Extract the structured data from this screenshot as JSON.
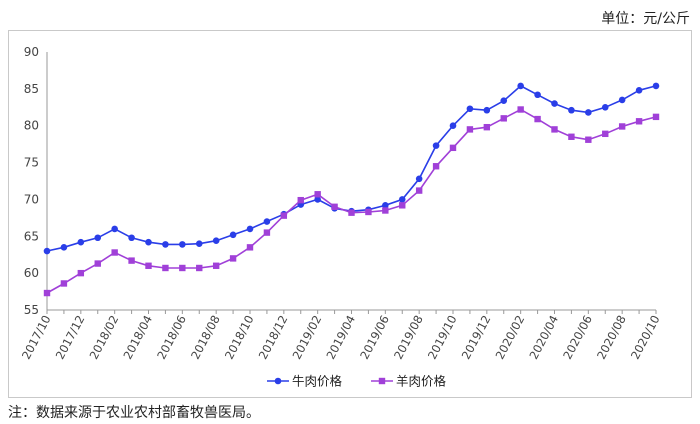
{
  "unit_label": "单位：元/公斤",
  "note": "注：数据来源于农业农村部畜牧兽医局。",
  "chart_data": {
    "type": "line",
    "title": "",
    "xlabel": "",
    "ylabel": "",
    "ylim": [
      55,
      90
    ],
    "yticks": [
      55,
      60,
      65,
      70,
      75,
      80,
      85,
      90
    ],
    "grid": false,
    "legend_position": "bottom-center",
    "x": [
      "2017/10",
      "2017/11",
      "2017/12",
      "2018/01",
      "2018/02",
      "2018/03",
      "2018/04",
      "2018/05",
      "2018/06",
      "2018/07",
      "2018/08",
      "2018/09",
      "2018/10",
      "2018/11",
      "2018/12",
      "2019/01",
      "2019/02",
      "2019/03",
      "2019/04",
      "2019/05",
      "2019/06",
      "2019/07",
      "2019/08",
      "2019/09",
      "2019/10",
      "2019/11",
      "2019/12",
      "2020/01",
      "2020/02",
      "2020/03",
      "2020/04",
      "2020/05",
      "2020/06",
      "2020/07",
      "2020/08",
      "2020/09",
      "2020/10"
    ],
    "xtick_labels": [
      "2017/10",
      "2017/12",
      "2018/02",
      "2018/04",
      "2018/06",
      "2018/08",
      "2018/10",
      "2018/12",
      "2019/02",
      "2019/04",
      "2019/06",
      "2019/08",
      "2019/10",
      "2019/12",
      "2020/02",
      "2020/04",
      "2020/06",
      "2020/08",
      "2020/10"
    ],
    "series": [
      {
        "name": "牛肉价格",
        "color": "#2a3ee8",
        "marker": "circle",
        "values": [
          63.0,
          63.5,
          64.2,
          64.8,
          66.0,
          64.8,
          64.2,
          63.9,
          63.9,
          64.0,
          64.4,
          65.2,
          66.0,
          67.0,
          68.0,
          69.3,
          70.0,
          68.8,
          68.4,
          68.6,
          69.2,
          70.0,
          72.8,
          77.3,
          80.0,
          82.3,
          82.1,
          83.4,
          85.4,
          84.2,
          83.0,
          82.1,
          81.8,
          82.5,
          83.5,
          84.8,
          85.4
        ]
      },
      {
        "name": "羊肉价格",
        "color": "#a040d8",
        "marker": "square",
        "values": [
          57.3,
          58.6,
          60.0,
          61.3,
          62.8,
          61.7,
          61.0,
          60.7,
          60.7,
          60.7,
          61.0,
          62.0,
          63.5,
          65.5,
          67.8,
          69.9,
          70.7,
          69.0,
          68.2,
          68.3,
          68.5,
          69.2,
          71.2,
          74.5,
          77.0,
          79.5,
          79.8,
          81.0,
          82.2,
          80.9,
          79.5,
          78.5,
          78.1,
          78.9,
          79.9,
          80.6,
          81.2
        ]
      }
    ]
  }
}
